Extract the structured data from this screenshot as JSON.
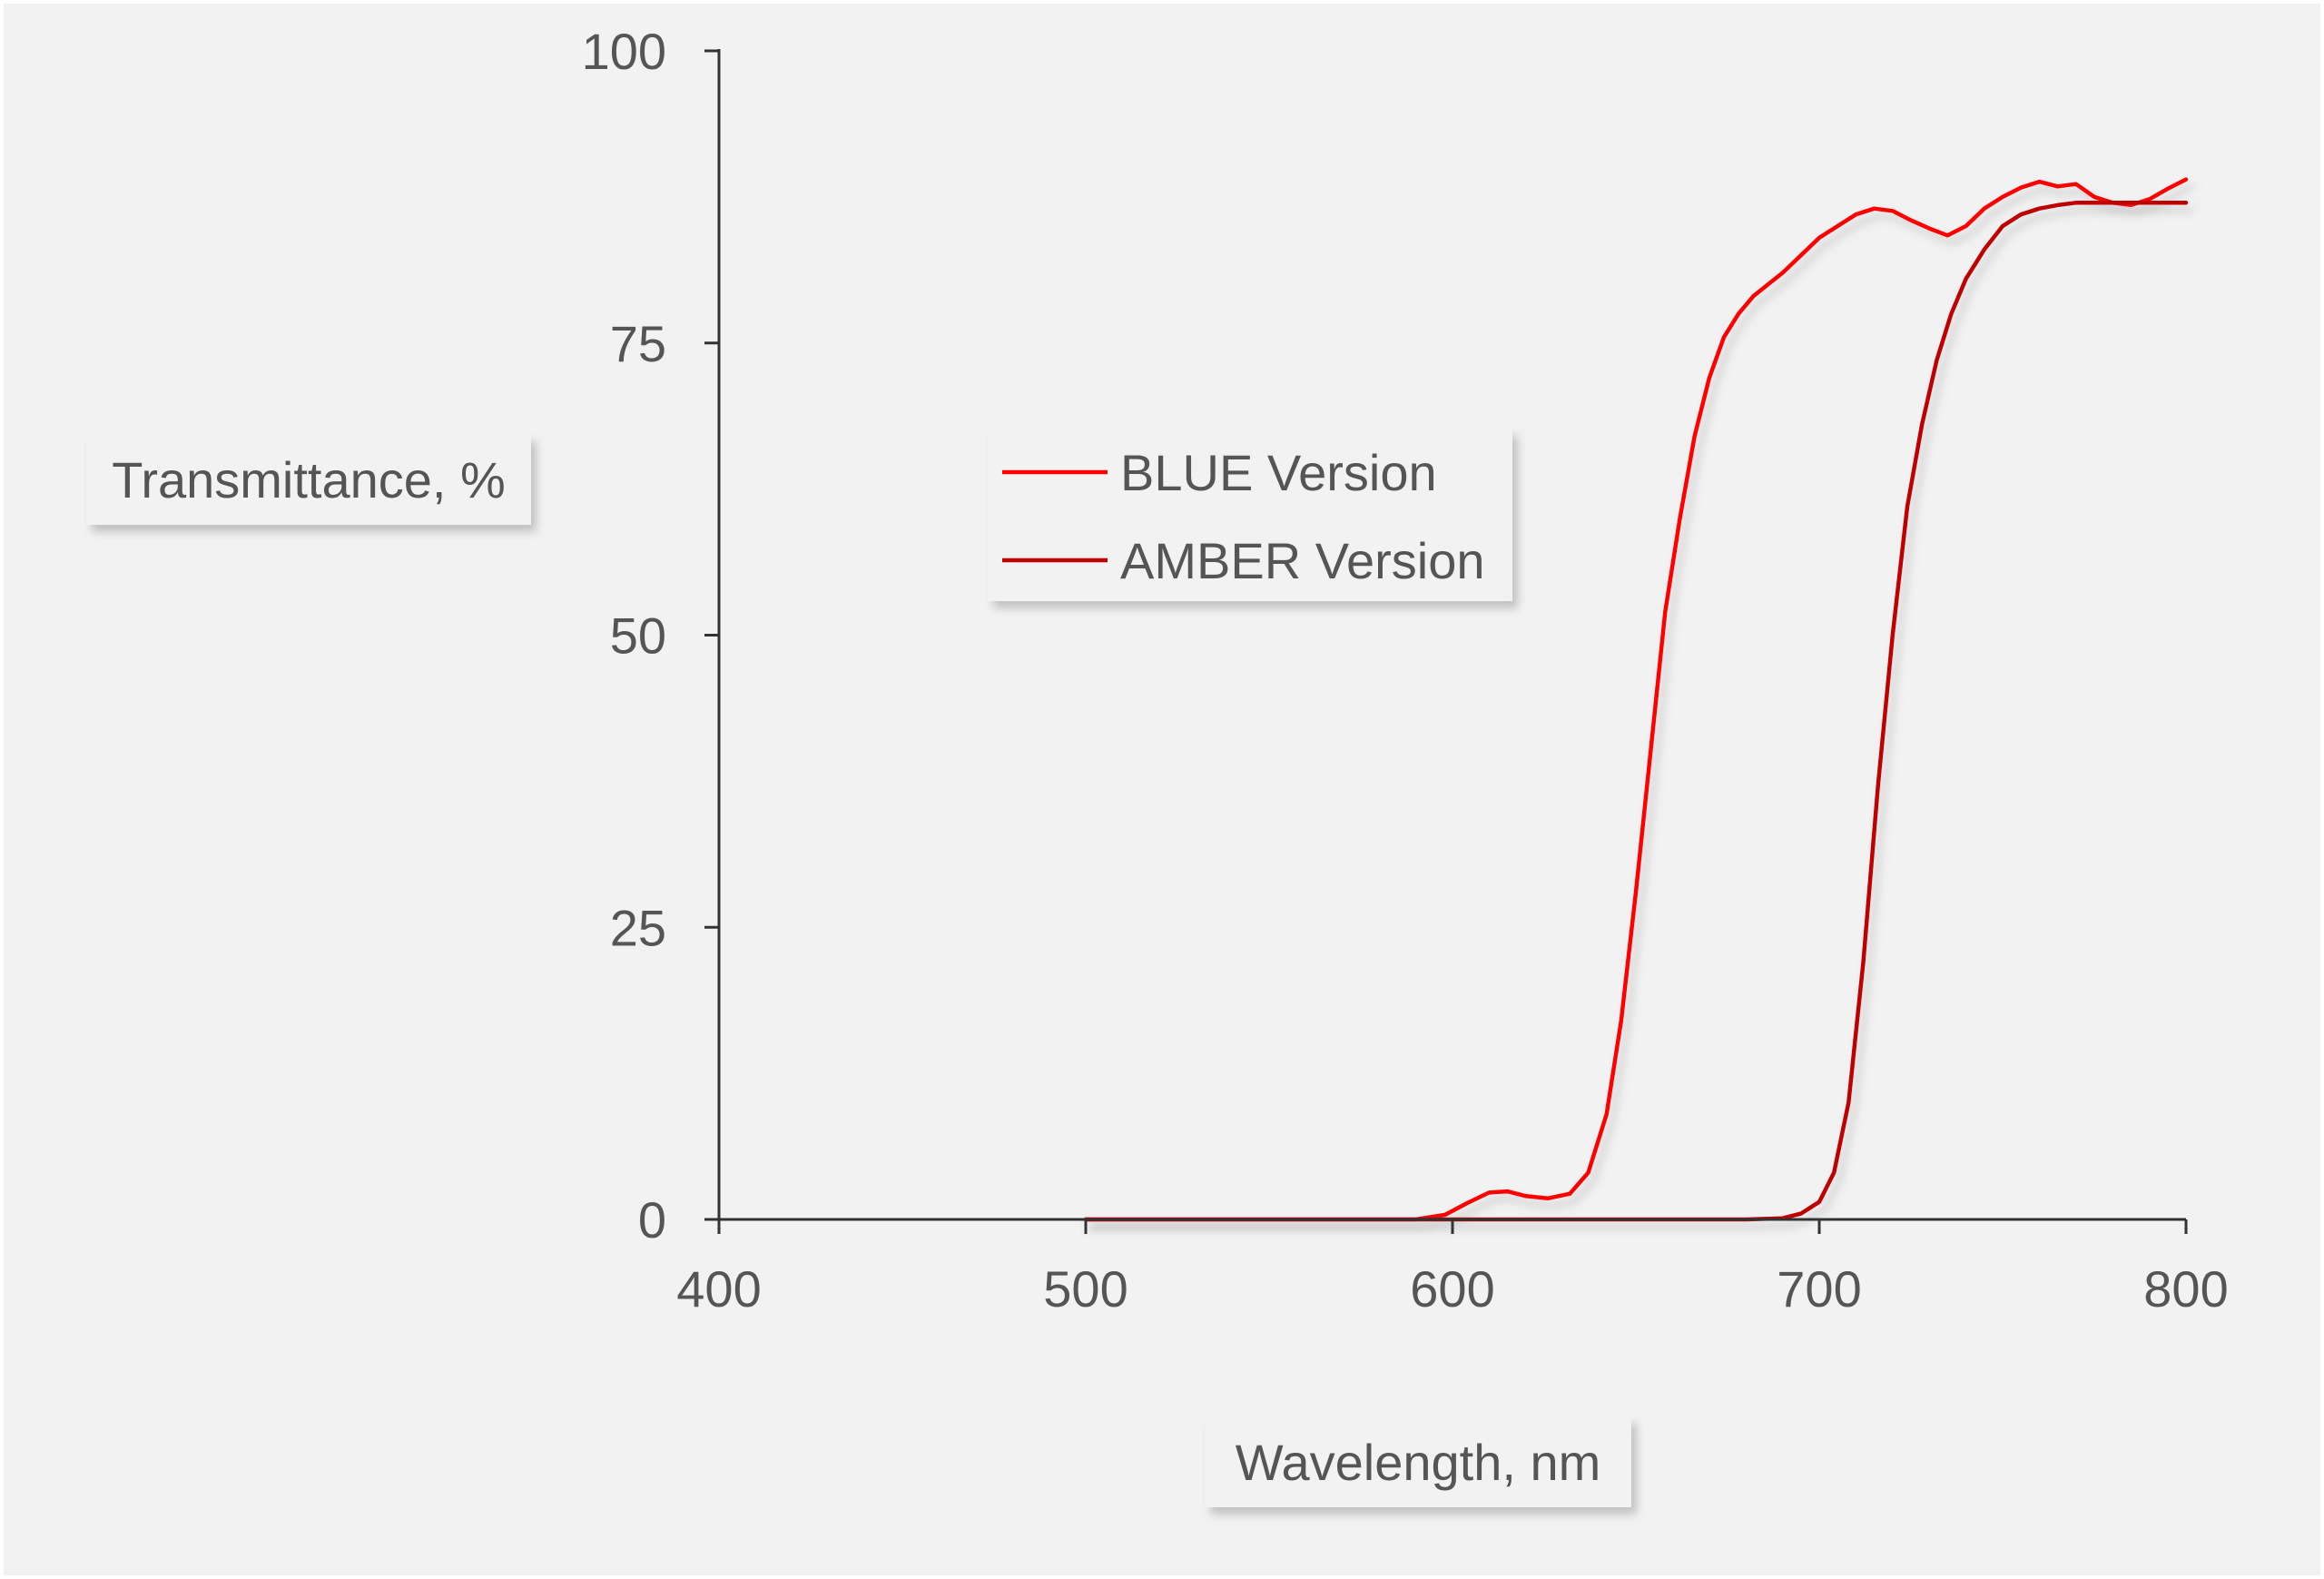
{
  "chart_data": {
    "type": "line",
    "title": "",
    "xlabel": "Wavelength, nm",
    "ylabel": "Transmittance, %",
    "xlim": [
      400,
      800
    ],
    "ylim": [
      0,
      100
    ],
    "x_ticks": [
      400,
      500,
      600,
      700,
      800
    ],
    "y_ticks": [
      0,
      25,
      50,
      75,
      100
    ],
    "x_tick_labels": [
      "400",
      "500",
      "600",
      "700",
      "800"
    ],
    "y_tick_labels": [
      "0",
      "25",
      "50",
      "75",
      "100"
    ],
    "grid": false,
    "legend_position": "center-left inside plot",
    "colors": {
      "background": "#f2f2f2",
      "axis": "#333333",
      "text": "#555555",
      "label_box": "#f2f2f2",
      "shadow": "#bfbfbf"
    },
    "series": [
      {
        "name": "BLUE Version",
        "color": "#ff0000",
        "x": [
          500,
          590,
          598,
          604,
          610,
          615,
          620,
          626,
          632,
          637,
          642,
          646,
          650,
          654,
          658,
          662,
          666,
          670,
          674,
          678,
          682,
          686,
          690,
          695,
          700,
          705,
          710,
          715,
          720,
          725,
          730,
          735,
          740,
          745,
          750,
          755,
          760,
          765,
          770,
          775,
          780,
          785,
          790,
          795,
          800
        ],
        "y": [
          0,
          0,
          0.4,
          1.4,
          2.3,
          2.4,
          2.0,
          1.8,
          2.2,
          4.0,
          9.0,
          17.0,
          28.0,
          40.0,
          52.0,
          60.0,
          67.0,
          72.0,
          75.5,
          77.5,
          79.0,
          80.0,
          81.0,
          82.5,
          84.0,
          85.0,
          86.0,
          86.5,
          86.3,
          85.5,
          84.8,
          84.2,
          85.0,
          86.5,
          87.5,
          88.3,
          88.8,
          88.4,
          88.6,
          87.5,
          87.0,
          86.8,
          87.3,
          88.2,
          89.0
        ]
      },
      {
        "name": "AMBER Version",
        "color": "#c00000",
        "x": [
          500,
          680,
          690,
          695,
          700,
          704,
          708,
          712,
          716,
          720,
          724,
          728,
          732,
          736,
          740,
          745,
          750,
          755,
          760,
          765,
          770,
          780,
          790,
          800
        ],
        "y": [
          0,
          0,
          0.1,
          0.5,
          1.5,
          4.0,
          10.0,
          22.0,
          37.0,
          50.0,
          61.0,
          68.0,
          73.5,
          77.5,
          80.5,
          83.0,
          85.0,
          86.0,
          86.5,
          86.8,
          87.0,
          87.0,
          87.0,
          87.0
        ]
      }
    ]
  }
}
